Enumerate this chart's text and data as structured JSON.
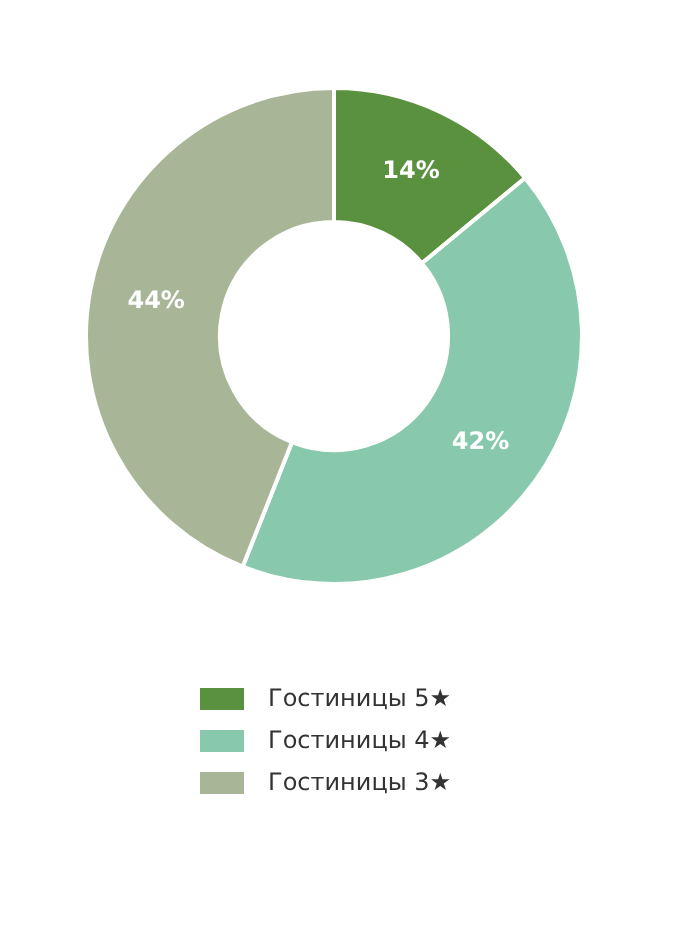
{
  "chart_data": {
    "type": "donut",
    "categories": [
      "Гостиницы 5★",
      "Гостиницы 4★",
      "Гостиницы 3★"
    ],
    "values": [
      14,
      42,
      44
    ],
    "colors": [
      "#5a913f",
      "#88c9ad",
      "#a9b597"
    ],
    "value_labels": [
      "14%",
      "42%",
      "44%"
    ],
    "legend": "bottom"
  }
}
